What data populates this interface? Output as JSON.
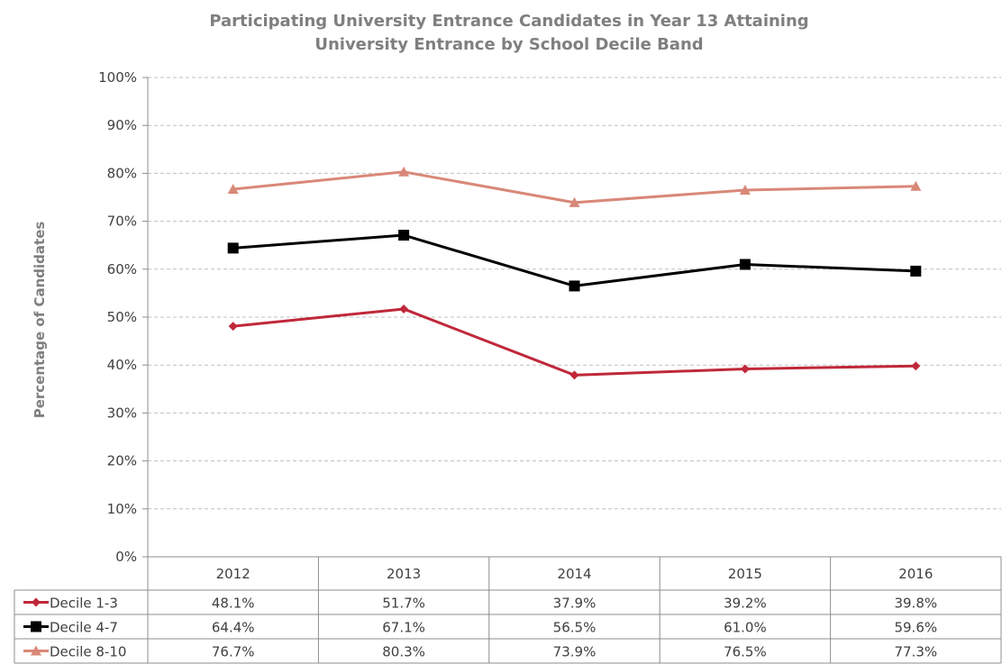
{
  "chart_data": {
    "type": "line",
    "title_line1": "Participating University Entrance Candidates in Year 13 Attaining",
    "title_line2": "University Entrance by School Decile Band",
    "xlabel": "",
    "ylabel": "Percentage of Candidates",
    "ylim": [
      0,
      100
    ],
    "yticks": [
      "0%",
      "10%",
      "20%",
      "30%",
      "40%",
      "50%",
      "60%",
      "70%",
      "80%",
      "90%",
      "100%"
    ],
    "categories": [
      "2012",
      "2013",
      "2014",
      "2015",
      "2016"
    ],
    "grid": true,
    "legend": "data-table",
    "series": [
      {
        "name": "Decile 1-3",
        "values": [
          48.1,
          51.7,
          37.9,
          39.2,
          39.8
        ],
        "labels": [
          "48.1%",
          "51.7%",
          "37.9%",
          "39.2%",
          "39.8%"
        ],
        "color": "#c0283a",
        "marker": "diamond"
      },
      {
        "name": "Decile 4-7",
        "values": [
          64.4,
          67.1,
          56.5,
          61.0,
          59.6
        ],
        "labels": [
          "64.4%",
          "67.1%",
          "56.5%",
          "61.0%",
          "59.6%"
        ],
        "color": "#000000",
        "marker": "square"
      },
      {
        "name": "Decile 8-10",
        "values": [
          76.7,
          80.3,
          73.9,
          76.5,
          77.3
        ],
        "labels": [
          "76.7%",
          "80.3%",
          "73.9%",
          "76.5%",
          "77.3%"
        ],
        "color": "#d98878",
        "marker": "triangle"
      }
    ]
  }
}
